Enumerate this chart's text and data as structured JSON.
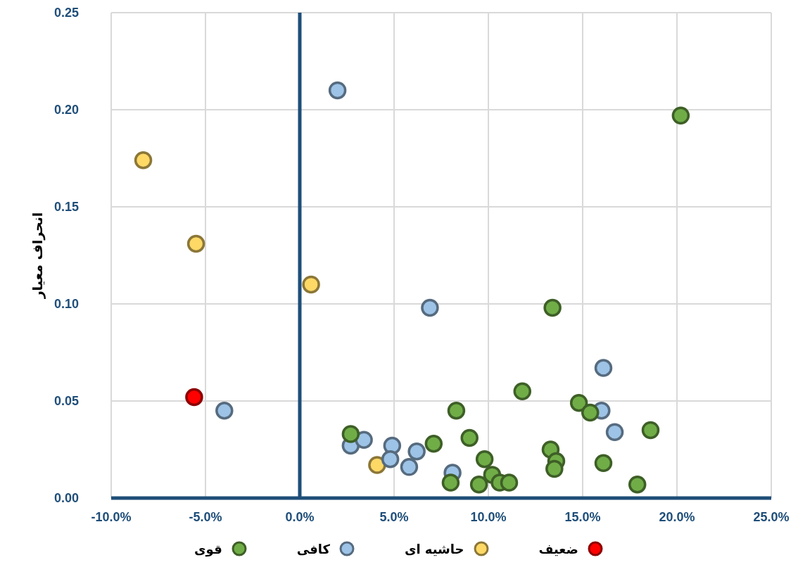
{
  "chart_data": {
    "type": "scatter",
    "ylabel": "انحراف معیار",
    "xlim": [
      -10,
      25
    ],
    "xticks": [
      {
        "value": -10,
        "label": "-10.0%"
      },
      {
        "value": -5,
        "label": "-5.0%"
      },
      {
        "value": 0,
        "label": "0.0%"
      },
      {
        "value": 5,
        "label": "5.0%"
      },
      {
        "value": 10,
        "label": "10.0%"
      },
      {
        "value": 15,
        "label": "15.0%"
      },
      {
        "value": 20,
        "label": "20.0%"
      },
      {
        "value": 25,
        "label": "25.0%"
      }
    ],
    "ylim": [
      0,
      0.25
    ],
    "yticks": [
      {
        "value": 0,
        "label": "0.00"
      },
      {
        "value": 0.05,
        "label": "0.05"
      },
      {
        "value": 0.1,
        "label": "0.10"
      },
      {
        "value": 0.15,
        "label": "0.15"
      },
      {
        "value": 0.2,
        "label": "0.20"
      },
      {
        "value": 0.25,
        "label": "0.25"
      }
    ],
    "grid": true,
    "legend": "bottom",
    "marker": "circle",
    "ref_lines": [
      {
        "axis": "x",
        "value": 0,
        "color": "#1f4e79"
      }
    ],
    "series": [
      {
        "name": "ضعیف",
        "color": "#ff0000",
        "x": [
          -5.6
        ],
        "values": [
          0.052
        ]
      },
      {
        "name": "حاشیه ای",
        "color": "#ffd966",
        "x": [
          -8.3,
          -5.5,
          0.6,
          4.1
        ],
        "values": [
          0.174,
          0.131,
          0.11,
          0.017
        ]
      },
      {
        "name": "کافی",
        "color": "#9dc3e6",
        "x": [
          2.0,
          -4.0,
          6.9,
          16.1,
          16.0,
          16.7,
          2.7,
          3.4,
          4.9,
          4.8,
          6.2,
          5.8,
          8.1
        ],
        "values": [
          0.21,
          0.045,
          0.098,
          0.067,
          0.045,
          0.034,
          0.027,
          0.03,
          0.027,
          0.02,
          0.024,
          0.016,
          0.013
        ]
      },
      {
        "name": "قوی",
        "color": "#70ad47",
        "x": [
          2.7,
          7.1,
          8.3,
          9.0,
          9.8,
          9.5,
          10.2,
          8.0,
          10.6,
          11.1,
          11.8,
          13.4,
          13.3,
          13.6,
          13.5,
          14.8,
          15.4,
          16.1,
          18.6,
          17.9,
          20.2
        ],
        "values": [
          0.033,
          0.028,
          0.045,
          0.031,
          0.02,
          0.007,
          0.012,
          0.008,
          0.008,
          0.008,
          0.055,
          0.098,
          0.025,
          0.019,
          0.015,
          0.049,
          0.044,
          0.018,
          0.035,
          0.007,
          0.197
        ]
      }
    ]
  }
}
